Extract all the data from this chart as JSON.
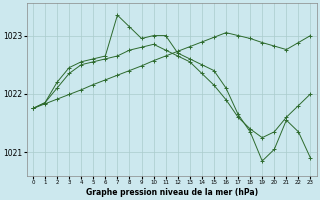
{
  "bg_color": "#cce8ee",
  "grid_color": "#aacccc",
  "line_color": "#2d6a2d",
  "line1_x": [
    0,
    1,
    2,
    3,
    4,
    5,
    6,
    7,
    8,
    9,
    10,
    11,
    12,
    13,
    14,
    15,
    16,
    17,
    18,
    19,
    20,
    21,
    22,
    23
  ],
  "line1_y": [
    1021.75,
    1021.83,
    1021.91,
    1021.99,
    1022.07,
    1022.16,
    1022.24,
    1022.32,
    1022.4,
    1022.48,
    1022.57,
    1022.65,
    1022.73,
    1022.81,
    1022.89,
    1022.97,
    1023.05,
    1023.0,
    1022.95,
    1022.88,
    1022.82,
    1022.76,
    1022.88,
    1023.0
  ],
  "line2_x": [
    0,
    1,
    2,
    3,
    4,
    5,
    6,
    7,
    8,
    9,
    10,
    11,
    12,
    13,
    14,
    15,
    16,
    17,
    18,
    19,
    20,
    21,
    22,
    23
  ],
  "line2_y": [
    1021.75,
    1021.85,
    1022.1,
    1022.35,
    1022.5,
    1022.55,
    1022.6,
    1022.65,
    1022.75,
    1022.8,
    1022.85,
    1022.75,
    1022.65,
    1022.55,
    1022.35,
    1022.15,
    1021.9,
    1021.6,
    1021.4,
    1021.25,
    1021.35,
    1021.6,
    1021.8,
    1022.0
  ],
  "line3_x": [
    0,
    1,
    2,
    3,
    4,
    5,
    6,
    7,
    8,
    9,
    10,
    11,
    12,
    13,
    14,
    15,
    16,
    17,
    18,
    19,
    20,
    21,
    22,
    23
  ],
  "line3_y": [
    1021.75,
    1021.85,
    1022.2,
    1022.45,
    1022.55,
    1022.6,
    1022.65,
    1023.35,
    1023.15,
    1022.95,
    1023.0,
    1023.0,
    1022.7,
    1022.6,
    1022.5,
    1022.4,
    1022.1,
    1021.65,
    1021.35,
    1020.85,
    1021.05,
    1021.55,
    1021.35,
    1020.9
  ],
  "ylim": [
    1020.6,
    1023.55
  ],
  "yticks": [
    1021,
    1022,
    1023
  ],
  "xticks": [
    0,
    1,
    2,
    3,
    4,
    5,
    6,
    7,
    8,
    9,
    10,
    11,
    12,
    13,
    14,
    15,
    16,
    17,
    18,
    19,
    20,
    21,
    22,
    23
  ],
  "xlabel": "Graphe pression niveau de la mer (hPa)"
}
